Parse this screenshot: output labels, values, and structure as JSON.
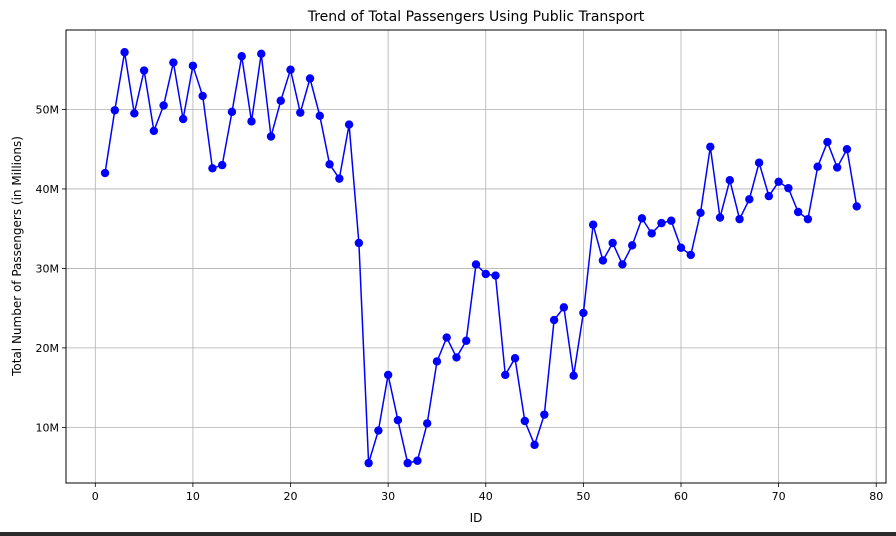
{
  "chart_data": {
    "type": "line",
    "title": "Trend of Total Passengers Using Public Transport",
    "xlabel": "ID",
    "ylabel": "Total Number of Passengers (in Millions)",
    "xlim": [
      -3,
      81
    ],
    "ylim": [
      3,
      60
    ],
    "x_ticks": [
      0,
      10,
      20,
      30,
      40,
      50,
      60,
      70,
      80
    ],
    "y_ticks": [
      10,
      20,
      30,
      40,
      50
    ],
    "y_tick_labels": [
      "10M",
      "20M",
      "30M",
      "40M",
      "50M"
    ],
    "grid": true,
    "series": [
      {
        "color": "#0000ff",
        "marker": "circle",
        "x": [
          1,
          2,
          3,
          4,
          5,
          6,
          7,
          8,
          9,
          10,
          11,
          12,
          13,
          14,
          15,
          16,
          17,
          18,
          19,
          20,
          21,
          22,
          23,
          24,
          25,
          26,
          27,
          28,
          29,
          30,
          31,
          32,
          33,
          34,
          35,
          36,
          37,
          38,
          39,
          40,
          41,
          42,
          43,
          44,
          45,
          46,
          47,
          48,
          49,
          50,
          51,
          52,
          53,
          54,
          55,
          56,
          57,
          58,
          59,
          60,
          61,
          62,
          63,
          64,
          65,
          66,
          67,
          68,
          69,
          70,
          71,
          72,
          73,
          74,
          75,
          76,
          77,
          78
        ],
        "y": [
          42.0,
          49.9,
          57.2,
          49.5,
          54.9,
          47.3,
          50.5,
          55.9,
          48.8,
          55.5,
          51.7,
          42.6,
          43.0,
          49.7,
          56.7,
          48.5,
          57.0,
          46.6,
          51.1,
          55.0,
          49.6,
          53.9,
          49.2,
          43.1,
          41.3,
          48.1,
          33.2,
          5.5,
          9.6,
          16.6,
          10.9,
          5.5,
          5.8,
          10.5,
          18.3,
          21.3,
          18.8,
          20.9,
          30.5,
          29.3,
          29.1,
          16.6,
          18.7,
          10.8,
          7.8,
          11.6,
          23.5,
          25.1,
          16.5,
          24.4,
          35.5,
          31.0,
          33.2,
          30.5,
          32.9,
          36.3,
          34.4,
          35.7,
          36.0,
          32.6,
          31.7,
          37.0,
          45.3,
          36.4,
          41.1,
          36.2,
          38.7,
          43.3,
          39.1,
          40.9,
          40.1,
          37.1,
          36.2,
          42.8,
          45.9,
          42.7,
          45.0,
          37.8
        ]
      }
    ]
  }
}
